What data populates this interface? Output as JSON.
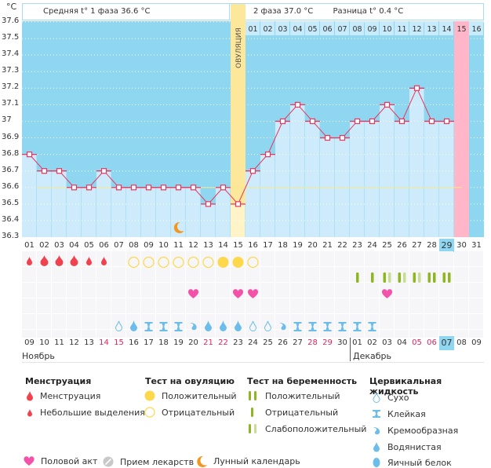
{
  "header": {
    "unit": "°C",
    "phase1_text": "Средняя t° 1 фаза 36.6 °C",
    "phase2_text": "2 фаза 37.0 °C",
    "diff_text": "Разница t° 0.4 °C",
    "ovulation_label": "ОВУЛЯЦИЯ"
  },
  "colors": {
    "chart_bg": "#8fd6f1",
    "bar_fill": "#cdebfa",
    "line": "#e8365d",
    "ovulation_band": "#fde79a",
    "menstruation_next": "#ffb6c8",
    "highlight_day": "#8fd6f1",
    "coverline": "#f5e88a",
    "menstruation": "#f0424e",
    "ovulation_test": "#fdd84a",
    "pregnancy_test": "#8db620",
    "pregnancy_weak": "#c8dc94",
    "cervical": "#6cbdea",
    "heart": "#f452a9",
    "moon": "#f2961e",
    "pill": "#c8c8c8"
  },
  "chart_data": {
    "type": "line",
    "title": "",
    "xlabel": "",
    "ylabel": "°C",
    "ylim": [
      36.3,
      37.6
    ],
    "yticks": [
      "37.6",
      "37.5",
      "37.4",
      "37.3",
      "37.2",
      "37.1",
      "37",
      "36.9",
      "36.8",
      "36.7",
      "36.6",
      "36.5",
      "36.4",
      "36.3"
    ],
    "cycle_days": [
      "01",
      "02",
      "03",
      "04",
      "05",
      "06",
      "07",
      "08",
      "09",
      "10",
      "11",
      "12",
      "13",
      "14",
      "15",
      "16",
      "17",
      "18",
      "19",
      "20",
      "21",
      "22",
      "23",
      "24",
      "25",
      "26",
      "27",
      "28",
      "29",
      "30",
      "31"
    ],
    "temperatures": [
      36.8,
      36.7,
      36.7,
      36.6,
      36.6,
      36.7,
      36.6,
      36.6,
      36.6,
      36.6,
      36.6,
      36.6,
      36.5,
      36.6,
      36.5,
      36.7,
      36.8,
      37.0,
      37.1,
      37.0,
      36.9,
      36.9,
      37.0,
      37.0,
      37.1,
      37.0,
      37.2,
      37.0,
      37.0,
      null,
      null
    ],
    "coverline": 36.6,
    "ovulation_day": 15,
    "current_day": 29,
    "next_period_day": 30,
    "luteal_days": [
      "01",
      "02",
      "03",
      "04",
      "05",
      "06",
      "07",
      "08",
      "09",
      "10",
      "11",
      "12",
      "13",
      "14",
      "15",
      "16"
    ],
    "luteal_highlight": 15,
    "calendar_dates": [
      "09",
      "10",
      "11",
      "12",
      "13",
      "14",
      "15",
      "16",
      "17",
      "18",
      "19",
      "20",
      "21",
      "22",
      "23",
      "24",
      "25",
      "26",
      "27",
      "28",
      "29",
      "30",
      "01",
      "02",
      "03",
      "04",
      "05",
      "06",
      "07",
      "08",
      "09"
    ],
    "calendar_weekend": [
      false,
      false,
      false,
      false,
      false,
      true,
      true,
      false,
      false,
      false,
      false,
      false,
      true,
      true,
      false,
      false,
      false,
      false,
      false,
      true,
      true,
      false,
      false,
      false,
      false,
      false,
      true,
      true,
      false,
      false,
      false
    ],
    "calendar_today_index": 28,
    "month1": "Ноябрь",
    "month2": "Декабрь",
    "month2_start_index": 22,
    "moon_day": 11,
    "menstruation": [
      "light",
      "heavy",
      "heavy",
      "heavy",
      "light",
      "light",
      null,
      null,
      null,
      null,
      null,
      null,
      null,
      null,
      null,
      null,
      null,
      null,
      null,
      null,
      null,
      null,
      null,
      null,
      null,
      null,
      null,
      null,
      null,
      null,
      null
    ],
    "ovulation_test": [
      null,
      null,
      null,
      null,
      null,
      null,
      null,
      "neg",
      "neg",
      "neg",
      "neg",
      "neg",
      "neg",
      "pos",
      "pos",
      "neg",
      null,
      null,
      null,
      null,
      null,
      null,
      null,
      null,
      null,
      null,
      null,
      null,
      null,
      null,
      null
    ],
    "pregnancy_test": [
      null,
      null,
      null,
      null,
      null,
      null,
      null,
      null,
      null,
      null,
      null,
      null,
      null,
      null,
      null,
      null,
      null,
      null,
      null,
      null,
      null,
      null,
      "neg",
      "neg",
      "weak",
      "weak",
      "weak",
      "pos",
      "pos",
      null,
      null
    ],
    "intercourse": [
      null,
      null,
      null,
      null,
      null,
      null,
      null,
      null,
      null,
      null,
      null,
      true,
      null,
      null,
      true,
      true,
      null,
      null,
      null,
      null,
      null,
      null,
      null,
      null,
      true,
      null,
      null,
      null,
      null,
      null,
      null
    ],
    "cervical_fluid": [
      null,
      null,
      null,
      null,
      null,
      null,
      "dry",
      "watery",
      "sticky",
      "sticky",
      "sticky",
      "creamy",
      "watery",
      "watery",
      "watery",
      "dry",
      "dry",
      "creamy",
      "sticky",
      "sticky",
      "sticky",
      "sticky",
      "sticky",
      "sticky",
      null,
      null,
      null,
      null,
      null,
      null,
      null
    ]
  },
  "legend": {
    "menstruation": {
      "title": "Менструация",
      "items": [
        "Менструация",
        "Небольшие выделения"
      ]
    },
    "ovulation_test": {
      "title": "Тест на овуляцию",
      "items": [
        "Положительный",
        "Отрицательный"
      ]
    },
    "pregnancy_test": {
      "title": "Тест на беременность",
      "items": [
        "Положительный",
        "Отрицательный",
        "Слабоположительный"
      ]
    },
    "cervical_fluid": {
      "title": "Цервикальная жидкость",
      "items": [
        "Сухо",
        "Клейкая",
        "Кремообразная",
        "Водянистая",
        "Яичный белок"
      ]
    },
    "misc": [
      "Половой акт",
      "Прием лекарств",
      "Лунный календарь"
    ]
  }
}
